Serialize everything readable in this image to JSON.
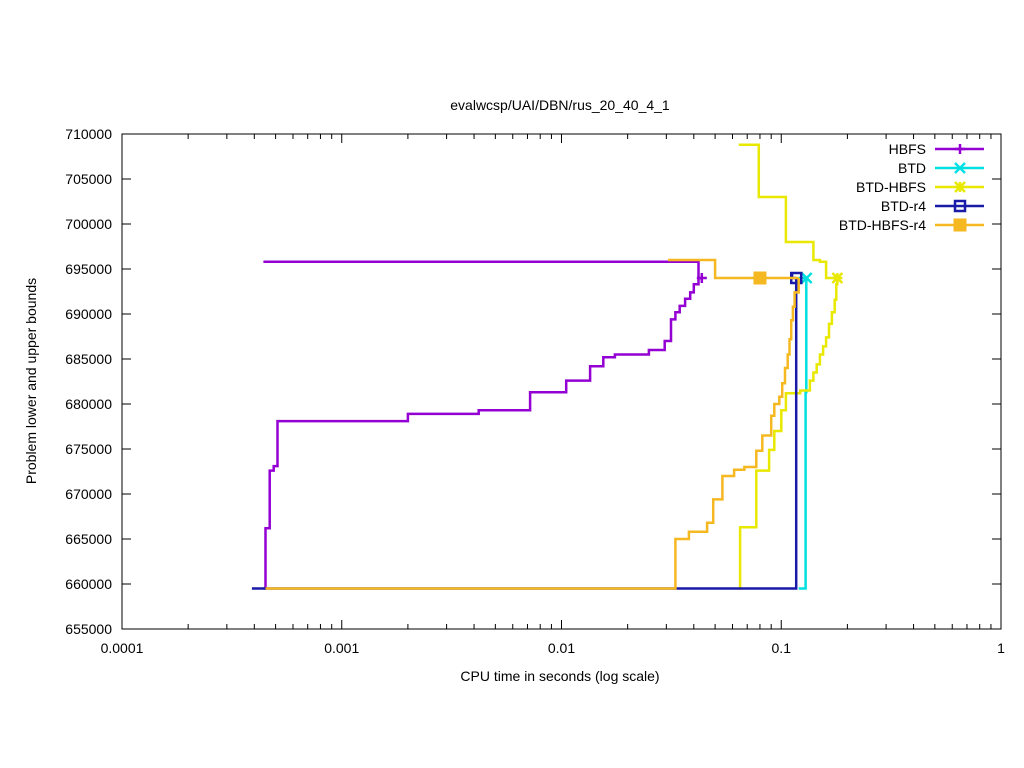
{
  "chart_data": {
    "type": "line",
    "title": "evalwcsp/UAI/DBN/rus_20_40_4_1",
    "xlabel": "CPU time in seconds (log scale)",
    "ylabel": "Problem lower and upper bounds",
    "x_scale": "log",
    "xlim": [
      0.0001,
      1
    ],
    "ylim": [
      655000,
      710000
    ],
    "x_ticks": [
      {
        "value": 0.0001,
        "label": "0.0001"
      },
      {
        "value": 0.001,
        "label": "0.001"
      },
      {
        "value": 0.01,
        "label": "0.01"
      },
      {
        "value": 0.1,
        "label": "0.1"
      },
      {
        "value": 1,
        "label": "1"
      }
    ],
    "y_ticks": [
      {
        "value": 655000,
        "label": "655000"
      },
      {
        "value": 660000,
        "label": "660000"
      },
      {
        "value": 665000,
        "label": "665000"
      },
      {
        "value": 670000,
        "label": "670000"
      },
      {
        "value": 675000,
        "label": "675000"
      },
      {
        "value": 680000,
        "label": "680000"
      },
      {
        "value": 685000,
        "label": "685000"
      },
      {
        "value": 690000,
        "label": "690000"
      },
      {
        "value": 695000,
        "label": "695000"
      },
      {
        "value": 700000,
        "label": "700000"
      },
      {
        "value": 705000,
        "label": "705000"
      },
      {
        "value": 710000,
        "label": "710000"
      }
    ],
    "grid": false,
    "legend_position": "top-right",
    "series": [
      {
        "name": "HBFS",
        "color": "#9400d3",
        "marker": "plus",
        "marker_at": [
          0.0435,
          694000
        ],
        "upper": [
          [
            0.00044,
            695800
          ],
          [
            0.042,
            695800
          ],
          [
            0.042,
            694000
          ],
          [
            0.0435,
            694000
          ]
        ],
        "lower": [
          [
            0.00044,
            659500
          ],
          [
            0.00045,
            659500
          ],
          [
            0.00045,
            666200
          ],
          [
            0.00047,
            666200
          ],
          [
            0.00047,
            672600
          ],
          [
            0.00049,
            672600
          ],
          [
            0.00049,
            673100
          ],
          [
            0.00051,
            673100
          ],
          [
            0.00051,
            678100
          ],
          [
            0.002,
            678100
          ],
          [
            0.002,
            678900
          ],
          [
            0.0042,
            678900
          ],
          [
            0.0042,
            679300
          ],
          [
            0.0072,
            679300
          ],
          [
            0.0072,
            681300
          ],
          [
            0.0105,
            681300
          ],
          [
            0.0105,
            682600
          ],
          [
            0.0135,
            682600
          ],
          [
            0.0135,
            684200
          ],
          [
            0.0155,
            684200
          ],
          [
            0.0155,
            685200
          ],
          [
            0.0175,
            685200
          ],
          [
            0.0175,
            685500
          ],
          [
            0.025,
            685500
          ],
          [
            0.025,
            686000
          ],
          [
            0.0295,
            686000
          ],
          [
            0.0295,
            687000
          ],
          [
            0.0315,
            687000
          ],
          [
            0.0315,
            689400
          ],
          [
            0.033,
            689400
          ],
          [
            0.033,
            690200
          ],
          [
            0.0345,
            690200
          ],
          [
            0.0345,
            690900
          ],
          [
            0.0365,
            690900
          ],
          [
            0.0365,
            691700
          ],
          [
            0.0385,
            691700
          ],
          [
            0.0385,
            692400
          ],
          [
            0.04,
            692400
          ],
          [
            0.04,
            693300
          ],
          [
            0.042,
            693300
          ],
          [
            0.042,
            694000
          ],
          [
            0.0435,
            694000
          ]
        ]
      },
      {
        "name": "BTD",
        "color": "#00e0e0",
        "marker": "cross",
        "marker_at": [
          0.1305,
          694000
        ],
        "upper": [
          [
            0.12,
            694000
          ],
          [
            0.1305,
            694000
          ]
        ],
        "lower": [
          [
            0.12,
            659500
          ],
          [
            0.129,
            659500
          ],
          [
            0.129,
            681300
          ],
          [
            0.13,
            681300
          ],
          [
            0.13,
            694000
          ],
          [
            0.1305,
            694000
          ]
        ]
      },
      {
        "name": "BTD-HBFS",
        "color": "#e8e800",
        "marker": "star",
        "marker_at": [
          0.18,
          694000
        ],
        "upper": [
          [
            0.064,
            708800
          ],
          [
            0.079,
            708800
          ],
          [
            0.079,
            703000
          ],
          [
            0.105,
            703000
          ],
          [
            0.105,
            698000
          ],
          [
            0.14,
            698000
          ],
          [
            0.14,
            696000
          ],
          [
            0.15,
            696000
          ],
          [
            0.15,
            695800
          ],
          [
            0.16,
            695800
          ],
          [
            0.16,
            694000
          ],
          [
            0.18,
            694000
          ]
        ],
        "lower": [
          [
            0.064,
            659500
          ],
          [
            0.065,
            659500
          ],
          [
            0.065,
            666300
          ],
          [
            0.077,
            666300
          ],
          [
            0.077,
            672600
          ],
          [
            0.088,
            672600
          ],
          [
            0.088,
            674900
          ],
          [
            0.093,
            674900
          ],
          [
            0.093,
            677000
          ],
          [
            0.1,
            677000
          ],
          [
            0.1,
            679300
          ],
          [
            0.105,
            679300
          ],
          [
            0.105,
            681200
          ],
          [
            0.122,
            681200
          ],
          [
            0.122,
            681500
          ],
          [
            0.135,
            681500
          ],
          [
            0.135,
            682600
          ],
          [
            0.14,
            682600
          ],
          [
            0.14,
            683500
          ],
          [
            0.145,
            683500
          ],
          [
            0.145,
            684400
          ],
          [
            0.15,
            684400
          ],
          [
            0.15,
            685500
          ],
          [
            0.155,
            685500
          ],
          [
            0.155,
            686400
          ],
          [
            0.16,
            686400
          ],
          [
            0.16,
            687400
          ],
          [
            0.165,
            687400
          ],
          [
            0.165,
            688900
          ],
          [
            0.17,
            688900
          ],
          [
            0.17,
            690200
          ],
          [
            0.175,
            690200
          ],
          [
            0.175,
            691600
          ],
          [
            0.178,
            691600
          ],
          [
            0.178,
            693300
          ],
          [
            0.18,
            693300
          ],
          [
            0.18,
            694000
          ]
        ]
      },
      {
        "name": "BTD-r4",
        "color": "#1a1aa8",
        "marker": "open-square",
        "marker_at": [
          0.117,
          694000
        ],
        "upper": [
          [
            0.112,
            694500
          ],
          [
            0.112,
            694000
          ],
          [
            0.117,
            694000
          ]
        ],
        "lower": [
          [
            0.00039,
            659500
          ],
          [
            0.117,
            659500
          ],
          [
            0.117,
            694000
          ]
        ]
      },
      {
        "name": "BTD-HBFS-r4",
        "color": "#f5b820",
        "marker": "filled-square",
        "marker_at": [
          0.08,
          694000
        ],
        "upper": [
          [
            0.0305,
            696000
          ],
          [
            0.05,
            696000
          ],
          [
            0.05,
            694000
          ],
          [
            0.12,
            694000
          ]
        ],
        "lower": [
          [
            0.00045,
            659500
          ],
          [
            0.033,
            659500
          ],
          [
            0.033,
            665000
          ],
          [
            0.038,
            665000
          ],
          [
            0.038,
            665800
          ],
          [
            0.046,
            665800
          ],
          [
            0.046,
            666800
          ],
          [
            0.049,
            666800
          ],
          [
            0.049,
            669400
          ],
          [
            0.054,
            669400
          ],
          [
            0.054,
            672000
          ],
          [
            0.061,
            672000
          ],
          [
            0.061,
            672700
          ],
          [
            0.068,
            672700
          ],
          [
            0.068,
            673000
          ],
          [
            0.077,
            673000
          ],
          [
            0.077,
            674800
          ],
          [
            0.082,
            674800
          ],
          [
            0.082,
            676500
          ],
          [
            0.09,
            676500
          ],
          [
            0.09,
            678700
          ],
          [
            0.093,
            678700
          ],
          [
            0.093,
            680000
          ],
          [
            0.098,
            680000
          ],
          [
            0.098,
            680800
          ],
          [
            0.101,
            680800
          ],
          [
            0.101,
            682300
          ],
          [
            0.104,
            682300
          ],
          [
            0.104,
            684000
          ],
          [
            0.107,
            684000
          ],
          [
            0.107,
            685500
          ],
          [
            0.109,
            685500
          ],
          [
            0.109,
            687200
          ],
          [
            0.111,
            687200
          ],
          [
            0.111,
            689300
          ],
          [
            0.113,
            689300
          ],
          [
            0.113,
            690800
          ],
          [
            0.115,
            690800
          ],
          [
            0.115,
            692400
          ],
          [
            0.12,
            692400
          ],
          [
            0.12,
            694000
          ]
        ]
      }
    ]
  }
}
